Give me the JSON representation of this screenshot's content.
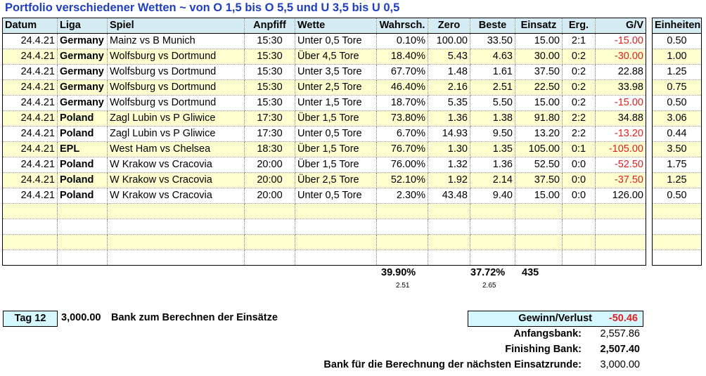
{
  "title": "Portfolio verschiedener Wetten ~ von O 1,5 bis O 5,5 und U 3,5 bis U 0,5",
  "headers": [
    "Datum",
    "Liga",
    "Spiel",
    "Anpfiff",
    "Wette",
    "Wahrsch.",
    "Zero",
    "Beste",
    "Einsatz",
    "Erg.",
    "G/V"
  ],
  "units_header": "Einheiten",
  "rows": [
    {
      "datum": "24.4.21",
      "liga": "Germany",
      "spiel": "Mainz vs B Munich",
      "anpfiff": "15:30",
      "wette": "Unter 0,5 Tore",
      "wahrsch": "0.10%",
      "zero": "100.00",
      "beste": "33.50",
      "einsatz": "15.00",
      "erg": "2:1",
      "gv": "-15.00",
      "neg": true,
      "units": "0.50"
    },
    {
      "datum": "24.4.21",
      "liga": "Germany",
      "spiel": "Wolfsburg vs Dortmund",
      "anpfiff": "15:30",
      "wette": "Über 4,5 Tore",
      "wahrsch": "18.40%",
      "zero": "5.43",
      "beste": "4.63",
      "einsatz": "30.00",
      "erg": "0:2",
      "gv": "-30.00",
      "neg": true,
      "units": "1.00"
    },
    {
      "datum": "24.4.21",
      "liga": "Germany",
      "spiel": "Wolfsburg vs Dortmund",
      "anpfiff": "15:30",
      "wette": "Unter 3,5 Tore",
      "wahrsch": "67.70%",
      "zero": "1.48",
      "beste": "1.61",
      "einsatz": "37.50",
      "erg": "0:2",
      "gv": "22.88",
      "neg": false,
      "units": "1.25"
    },
    {
      "datum": "24.4.21",
      "liga": "Germany",
      "spiel": "Wolfsburg vs Dortmund",
      "anpfiff": "15:30",
      "wette": "Unter 2,5 Tore",
      "wahrsch": "46.40%",
      "zero": "2.16",
      "beste": "2.51",
      "einsatz": "22.50",
      "erg": "0:2",
      "gv": "33.98",
      "neg": false,
      "units": "0.75"
    },
    {
      "datum": "24.4.21",
      "liga": "Germany",
      "spiel": "Wolfsburg vs Dortmund",
      "anpfiff": "15:30",
      "wette": "Unter 1,5 Tore",
      "wahrsch": "18.70%",
      "zero": "5.35",
      "beste": "5.50",
      "einsatz": "15.00",
      "erg": "0:2",
      "gv": "-15.00",
      "neg": true,
      "units": "0.50"
    },
    {
      "datum": "24.4.21",
      "liga": "Poland",
      "spiel": "Zagl Lubin vs P Gliwice",
      "anpfiff": "17:30",
      "wette": "Über 1,5 Tore",
      "wahrsch": "73.80%",
      "zero": "1.36",
      "beste": "1.38",
      "einsatz": "91.80",
      "erg": "2:2",
      "gv": "34.88",
      "neg": false,
      "units": "3.06"
    },
    {
      "datum": "24.4.21",
      "liga": "Poland",
      "spiel": "Zagl Lubin vs P Gliwice",
      "anpfiff": "17:30",
      "wette": "Unter 0,5 Tore",
      "wahrsch": "6.70%",
      "zero": "14.93",
      "beste": "9.50",
      "einsatz": "13.20",
      "erg": "2:2",
      "gv": "-13.20",
      "neg": true,
      "units": "0.44"
    },
    {
      "datum": "24.4.21",
      "liga": "EPL",
      "spiel": "West Ham vs Chelsea",
      "anpfiff": "18:30",
      "wette": "Über 1,5 Tore",
      "wahrsch": "76.70%",
      "zero": "1.30",
      "beste": "1.35",
      "einsatz": "105.00",
      "erg": "0:1",
      "gv": "-105.00",
      "neg": true,
      "units": "3.50"
    },
    {
      "datum": "24.4.21",
      "liga": "Poland",
      "spiel": "W Krakow vs Cracovia",
      "anpfiff": "20:00",
      "wette": "Über 1,5 Tore",
      "wahrsch": "76.00%",
      "zero": "1.32",
      "beste": "1.36",
      "einsatz": "52.50",
      "erg": "0:0",
      "gv": "-52.50",
      "neg": true,
      "units": "1.75"
    },
    {
      "datum": "24.4.21",
      "liga": "Poland",
      "spiel": "W Krakow vs Cracovia",
      "anpfiff": "20:00",
      "wette": "Über 2,5 Tore",
      "wahrsch": "52.10%",
      "zero": "1.92",
      "beste": "2.14",
      "einsatz": "37.50",
      "erg": "0:0",
      "gv": "-37.50",
      "neg": true,
      "units": "1.25"
    },
    {
      "datum": "24.4.21",
      "liga": "Poland",
      "spiel": "W Krakow vs Cracovia",
      "anpfiff": "20:00",
      "wette": "Unter 0,5 Tore",
      "wahrsch": "2.30%",
      "zero": "43.48",
      "beste": "9.40",
      "einsatz": "15.00",
      "erg": "0:0",
      "gv": "126.00",
      "neg": false,
      "units": "0.50"
    }
  ],
  "empty_rows": 4,
  "summary": {
    "wahrsch_avg": "39.90%",
    "wahrsch_sub": "2.51",
    "beste_avg": "37.72%",
    "beste_sub": "2.65",
    "einsatz_total": "435"
  },
  "footer": {
    "tag_label": "Tag 12",
    "bank_amount": "3,000.00",
    "bank_text": "Bank zum Berechnen der Einsätze",
    "gv_label": "Gewinn/Verlust",
    "gv_value": "-50.46",
    "anfangsbank_label": "Anfangsbank:",
    "anfangsbank_value": "2,557.86",
    "finishing_label": "Finishing Bank:",
    "finishing_value": "2,507.40",
    "next_label": "Bank für die Berechnung der nächsten Einsatzrunde:",
    "next_value": "3,000.00"
  },
  "colors": {
    "header_bg": "#d5ecf4",
    "alt_row_bg": "#ffffd0",
    "negative": "#e02020",
    "title": "#1f3fbf",
    "tag_bg": "#d5f8ff"
  }
}
